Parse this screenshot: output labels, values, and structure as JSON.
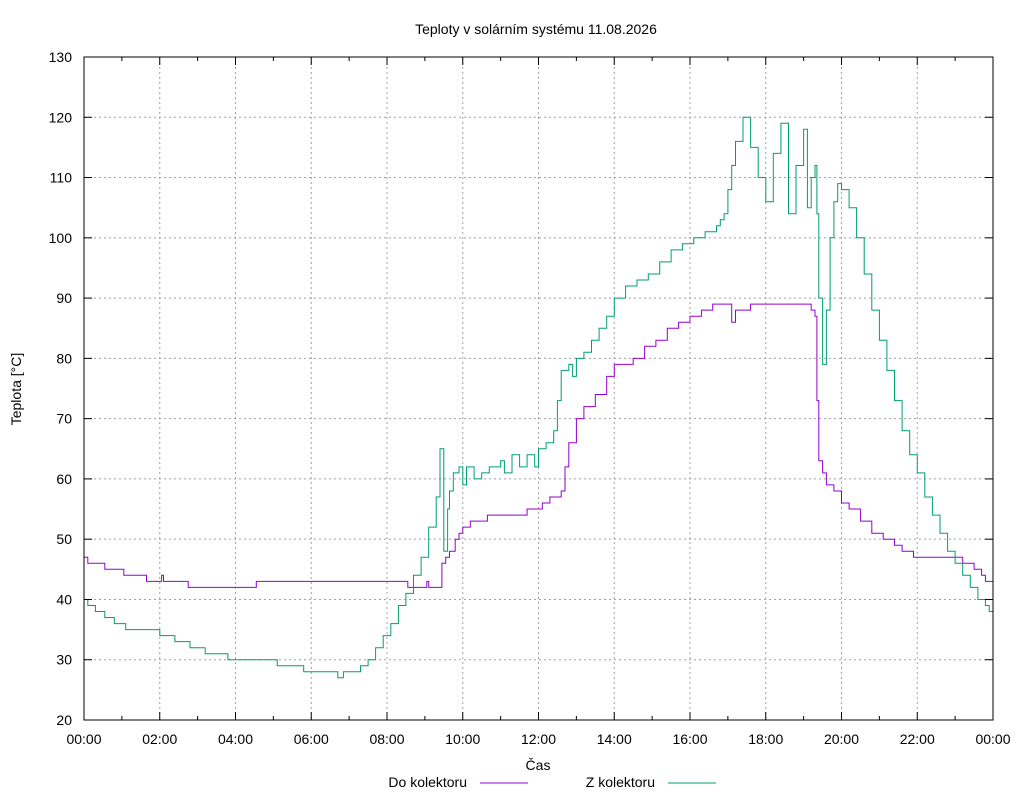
{
  "chart_data": {
    "type": "line",
    "title": "Teploty v solárním systému 11.08.2026",
    "xlabel": "Čas",
    "ylabel": "Teplota [°C]",
    "xlim": [
      0,
      24
    ],
    "ylim": [
      20,
      130
    ],
    "x_tick_labels": [
      "00:00",
      "02:00",
      "04:00",
      "06:00",
      "08:00",
      "10:00",
      "12:00",
      "14:00",
      "16:00",
      "18:00",
      "20:00",
      "22:00",
      "00:00"
    ],
    "y_tick_labels": [
      "20",
      "30",
      "40",
      "50",
      "60",
      "70",
      "80",
      "90",
      "100",
      "110",
      "120",
      "130"
    ],
    "grid": true,
    "legend_position": "bottom",
    "series": [
      {
        "name": "Do kolektoru",
        "color": "#9400d3",
        "style": "step",
        "points": [
          [
            0,
            47
          ],
          [
            0.1,
            46
          ],
          [
            0.5,
            46
          ],
          [
            0.55,
            45
          ],
          [
            1.0,
            45
          ],
          [
            1.05,
            44
          ],
          [
            1.6,
            44
          ],
          [
            1.65,
            43
          ],
          [
            2.0,
            43
          ],
          [
            2.05,
            44
          ],
          [
            2.1,
            43
          ],
          [
            2.7,
            43
          ],
          [
            2.75,
            42
          ],
          [
            4.5,
            42
          ],
          [
            4.55,
            43
          ],
          [
            8.5,
            43
          ],
          [
            8.55,
            42
          ],
          [
            9.0,
            42
          ],
          [
            9.05,
            43
          ],
          [
            9.1,
            42
          ],
          [
            9.4,
            42
          ],
          [
            9.45,
            46
          ],
          [
            9.55,
            47
          ],
          [
            9.65,
            48
          ],
          [
            9.75,
            48
          ],
          [
            9.8,
            50
          ],
          [
            9.9,
            51
          ],
          [
            10.0,
            52
          ],
          [
            10.2,
            53
          ],
          [
            10.6,
            53
          ],
          [
            10.65,
            54
          ],
          [
            11.0,
            54
          ],
          [
            11.1,
            54
          ],
          [
            11.5,
            54
          ],
          [
            11.7,
            55
          ],
          [
            12.0,
            55
          ],
          [
            12.1,
            56
          ],
          [
            12.3,
            57
          ],
          [
            12.5,
            57
          ],
          [
            12.6,
            58
          ],
          [
            12.7,
            62
          ],
          [
            12.8,
            66
          ],
          [
            13.0,
            70
          ],
          [
            13.2,
            72
          ],
          [
            13.5,
            74
          ],
          [
            13.8,
            77
          ],
          [
            14.0,
            79
          ],
          [
            14.3,
            79
          ],
          [
            14.5,
            80
          ],
          [
            14.8,
            82
          ],
          [
            15.1,
            83
          ],
          [
            15.4,
            85
          ],
          [
            15.7,
            86
          ],
          [
            16.0,
            87
          ],
          [
            16.3,
            88
          ],
          [
            16.6,
            89
          ],
          [
            16.8,
            89
          ],
          [
            17.0,
            89
          ],
          [
            17.1,
            86
          ],
          [
            17.2,
            88
          ],
          [
            17.5,
            88
          ],
          [
            17.6,
            89
          ],
          [
            19.0,
            89
          ],
          [
            19.2,
            88
          ],
          [
            19.3,
            87
          ],
          [
            19.35,
            73
          ],
          [
            19.4,
            63
          ],
          [
            19.5,
            61
          ],
          [
            19.6,
            59
          ],
          [
            19.8,
            58
          ],
          [
            20.0,
            56
          ],
          [
            20.2,
            55
          ],
          [
            20.5,
            53
          ],
          [
            20.8,
            51
          ],
          [
            21.1,
            50
          ],
          [
            21.4,
            49
          ],
          [
            21.6,
            48
          ],
          [
            21.9,
            47
          ],
          [
            22.3,
            47
          ],
          [
            22.8,
            47
          ],
          [
            23.2,
            46
          ],
          [
            23.5,
            45
          ],
          [
            23.7,
            44
          ],
          [
            23.8,
            43
          ],
          [
            24.0,
            43
          ]
        ]
      },
      {
        "name": "Z kolektoru",
        "color": "#009e73",
        "style": "step",
        "points": [
          [
            0,
            40
          ],
          [
            0.1,
            39
          ],
          [
            0.3,
            38
          ],
          [
            0.5,
            38
          ],
          [
            0.55,
            37
          ],
          [
            0.8,
            36
          ],
          [
            1.1,
            35
          ],
          [
            1.5,
            35
          ],
          [
            1.9,
            35
          ],
          [
            2.0,
            34
          ],
          [
            2.3,
            34
          ],
          [
            2.4,
            33
          ],
          [
            2.7,
            33
          ],
          [
            2.8,
            32
          ],
          [
            3.0,
            32
          ],
          [
            3.2,
            31
          ],
          [
            3.6,
            31
          ],
          [
            3.8,
            30
          ],
          [
            4.5,
            30
          ],
          [
            4.9,
            30
          ],
          [
            5.1,
            29
          ],
          [
            5.6,
            29
          ],
          [
            5.8,
            28
          ],
          [
            6.6,
            28
          ],
          [
            6.7,
            27
          ],
          [
            6.8,
            27
          ],
          [
            6.85,
            28
          ],
          [
            7.1,
            28
          ],
          [
            7.3,
            29
          ],
          [
            7.5,
            30
          ],
          [
            7.7,
            32
          ],
          [
            7.9,
            34
          ],
          [
            8.1,
            36
          ],
          [
            8.3,
            39
          ],
          [
            8.5,
            41
          ],
          [
            8.7,
            44
          ],
          [
            8.9,
            47
          ],
          [
            9.1,
            52
          ],
          [
            9.3,
            57
          ],
          [
            9.4,
            65
          ],
          [
            9.5,
            48
          ],
          [
            9.6,
            55
          ],
          [
            9.65,
            58
          ],
          [
            9.75,
            61
          ],
          [
            9.9,
            62
          ],
          [
            10.0,
            59
          ],
          [
            10.1,
            62
          ],
          [
            10.3,
            60
          ],
          [
            10.5,
            61
          ],
          [
            10.7,
            62
          ],
          [
            11.0,
            63
          ],
          [
            11.1,
            61
          ],
          [
            11.3,
            64
          ],
          [
            11.5,
            62
          ],
          [
            11.7,
            64
          ],
          [
            11.9,
            62
          ],
          [
            12.0,
            65
          ],
          [
            12.2,
            66
          ],
          [
            12.4,
            68
          ],
          [
            12.5,
            73
          ],
          [
            12.6,
            78
          ],
          [
            12.8,
            79
          ],
          [
            12.9,
            77
          ],
          [
            13.0,
            80
          ],
          [
            13.2,
            81
          ],
          [
            13.4,
            83
          ],
          [
            13.6,
            85
          ],
          [
            13.8,
            87
          ],
          [
            14.0,
            90
          ],
          [
            14.3,
            92
          ],
          [
            14.6,
            93
          ],
          [
            14.9,
            94
          ],
          [
            15.2,
            96
          ],
          [
            15.5,
            98
          ],
          [
            15.8,
            99
          ],
          [
            16.1,
            100
          ],
          [
            16.4,
            101
          ],
          [
            16.7,
            102
          ],
          [
            16.8,
            103
          ],
          [
            16.9,
            104
          ],
          [
            17.0,
            108
          ],
          [
            17.1,
            112
          ],
          [
            17.2,
            116
          ],
          [
            17.4,
            120
          ],
          [
            17.6,
            115
          ],
          [
            17.8,
            110
          ],
          [
            18.0,
            106
          ],
          [
            18.2,
            114
          ],
          [
            18.4,
            119
          ],
          [
            18.6,
            104
          ],
          [
            18.8,
            112
          ],
          [
            19.0,
            118
          ],
          [
            19.1,
            105
          ],
          [
            19.2,
            110
          ],
          [
            19.3,
            112
          ],
          [
            19.35,
            104
          ],
          [
            19.4,
            90
          ],
          [
            19.5,
            79
          ],
          [
            19.6,
            88
          ],
          [
            19.7,
            100
          ],
          [
            19.8,
            106
          ],
          [
            19.9,
            109
          ],
          [
            20.0,
            108
          ],
          [
            20.2,
            105
          ],
          [
            20.4,
            100
          ],
          [
            20.6,
            94
          ],
          [
            20.8,
            88
          ],
          [
            21.0,
            83
          ],
          [
            21.2,
            78
          ],
          [
            21.4,
            73
          ],
          [
            21.6,
            68
          ],
          [
            21.8,
            64
          ],
          [
            22.0,
            61
          ],
          [
            22.2,
            57
          ],
          [
            22.4,
            54
          ],
          [
            22.6,
            51
          ],
          [
            22.8,
            48
          ],
          [
            23.0,
            46
          ],
          [
            23.2,
            44
          ],
          [
            23.4,
            42
          ],
          [
            23.6,
            40
          ],
          [
            23.8,
            39
          ],
          [
            23.9,
            38
          ],
          [
            24.0,
            38
          ]
        ]
      }
    ]
  }
}
